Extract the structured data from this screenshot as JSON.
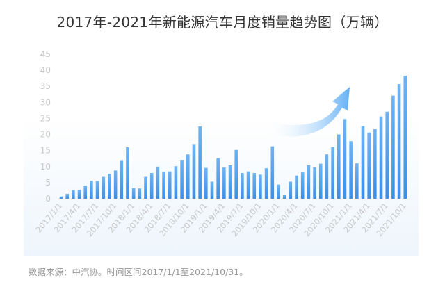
{
  "title": "2017年-2021年新能源汽车月度销量趋势图（万辆）",
  "source_note": "数据来源：中汽协。时间区间2017/1/1至2021/10/31。",
  "colors": {
    "bar_top": "#6fb3f2",
    "bar_bottom": "#3c8fe6",
    "tick_text": "#c8c8c8",
    "arrow_head": "#62b0f5",
    "arrow_tail": "#ffffff"
  },
  "chart_data": {
    "type": "bar",
    "title": "2017年-2021年新能源汽车月度销量趋势图（万辆）",
    "xlabel": "",
    "ylabel": "",
    "ylim": [
      0,
      45
    ],
    "yticks": [
      0,
      5,
      10,
      15,
      20,
      25,
      30,
      35,
      40,
      45
    ],
    "grid": false,
    "categories": [
      "2017/1/1",
      "2017/2/1",
      "2017/3/1",
      "2017/4/1",
      "2017/5/1",
      "2017/6/1",
      "2017/7/1",
      "2017/8/1",
      "2017/9/1",
      "2017/10/1",
      "2017/11/1",
      "2017/12/1",
      "2018/1/1",
      "2018/2/1",
      "2018/3/1",
      "2018/4/1",
      "2018/5/1",
      "2018/6/1",
      "2018/7/1",
      "2018/8/1",
      "2018/9/1",
      "2018/10/1",
      "2018/11/1",
      "2018/12/1",
      "2019/1/1",
      "2019/2/1",
      "2019/3/1",
      "2019/4/1",
      "2019/5/1",
      "2019/6/1",
      "2019/7/1",
      "2019/8/1",
      "2019/9/1",
      "2019/10/1",
      "2019/11/1",
      "2019/12/1",
      "2020/1/1",
      "2020/2/1",
      "2020/3/1",
      "2020/4/1",
      "2020/5/1",
      "2020/6/1",
      "2020/7/1",
      "2020/8/1",
      "2020/9/1",
      "2020/10/1",
      "2020/11/1",
      "2020/12/1",
      "2021/1/1",
      "2021/2/1",
      "2021/3/1",
      "2021/4/1",
      "2021/5/1",
      "2021/6/1",
      "2021/7/1",
      "2021/8/1",
      "2021/9/1",
      "2021/10/1"
    ],
    "x_tick_labels": [
      "2017/1/1",
      "2017/4/1",
      "2017/7/1",
      "2017/10/1",
      "2018/1/1",
      "2018/4/1",
      "2018/7/1",
      "2018/10/1",
      "2019/1/1",
      "2019/4/1",
      "2019/7/1",
      "2019/10/1",
      "2020/1/1",
      "2020/4/1",
      "2020/7/1",
      "2020/10/1",
      "2021/1/1",
      "2021/4/1",
      "2021/7/1",
      "2021/10/1"
    ],
    "series": [
      {
        "values": [
          0.7,
          1.5,
          2.7,
          2.8,
          4.1,
          5.6,
          5.5,
          6.8,
          7.8,
          8.8,
          12.0,
          16.0,
          3.3,
          3.2,
          6.8,
          8.0,
          10.0,
          8.4,
          8.5,
          10.1,
          12.1,
          13.8,
          17.0,
          22.5,
          9.6,
          5.3,
          12.6,
          9.7,
          10.4,
          15.2,
          8.0,
          8.5,
          8.0,
          7.5,
          9.5,
          16.3,
          4.4,
          1.3,
          5.3,
          7.2,
          8.2,
          10.4,
          9.8,
          10.9,
          13.8,
          16.0,
          20.0,
          24.8,
          17.9,
          11.0,
          22.6,
          20.6,
          21.7,
          25.6,
          27.1,
          32.1,
          35.7,
          38.3
        ]
      }
    ]
  }
}
